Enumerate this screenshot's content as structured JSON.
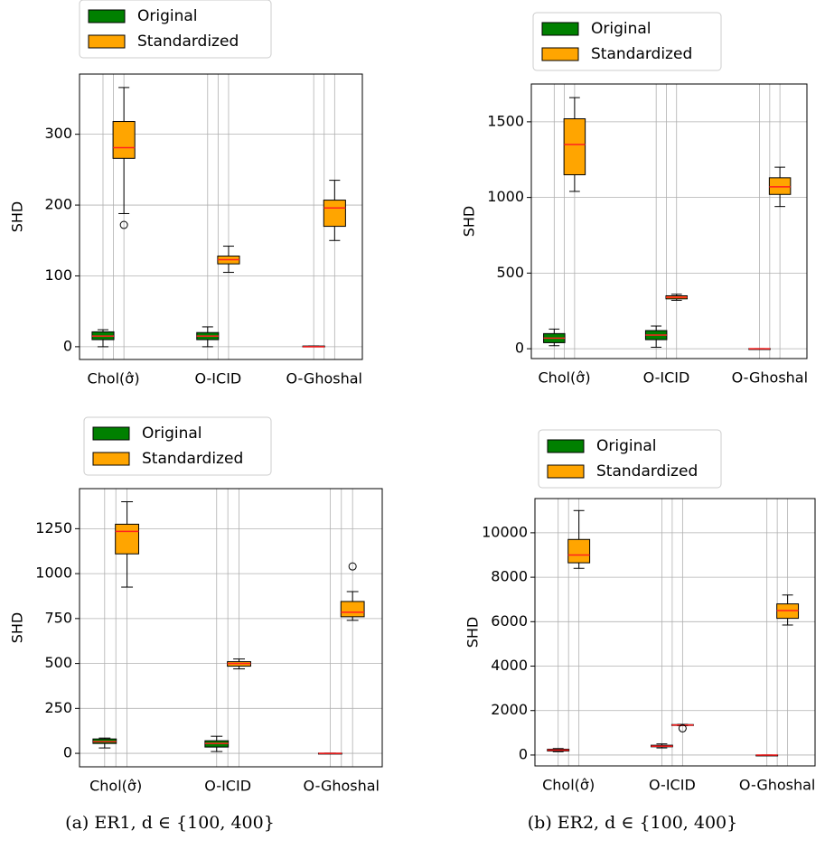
{
  "chart_data": [
    {
      "type": "box",
      "ylabel": "SHD",
      "categories": [
        "Chol(σ̂)",
        "O-ICID",
        "O-Ghoshal"
      ],
      "ylim": [
        -18,
        385
      ],
      "yticks": [
        0,
        100,
        200,
        300
      ],
      "grid": true,
      "legend": "top",
      "series": [
        {
          "name": "Original",
          "color": "#008000",
          "values": [
            {
              "min": 0,
              "q1": 10,
              "median": 15,
              "q3": 21,
              "max": 24,
              "outliers": []
            },
            {
              "min": 0,
              "q1": 10,
              "median": 15,
              "q3": 20,
              "max": 28,
              "outliers": []
            },
            {
              "min": 0,
              "q1": 0,
              "median": 0,
              "q3": 1,
              "max": 1,
              "outliers": []
            }
          ]
        },
        {
          "name": "Standardized",
          "color": "#ffa500",
          "values": [
            {
              "min": 188,
              "q1": 266,
              "median": 281,
              "q3": 318,
              "max": 366,
              "outliers": [
                172
              ]
            },
            {
              "min": 105,
              "q1": 117,
              "median": 123,
              "q3": 128,
              "max": 142,
              "outliers": []
            },
            {
              "min": 150,
              "q1": 170,
              "median": 196,
              "q3": 207,
              "max": 235,
              "outliers": []
            }
          ]
        }
      ]
    },
    {
      "type": "box",
      "ylabel": "SHD",
      "categories": [
        "Chol(σ̂)",
        "O-ICID",
        "O-Ghoshal"
      ],
      "ylim": [
        -65,
        1750
      ],
      "yticks": [
        0,
        500,
        1000,
        1500
      ],
      "grid": true,
      "legend": "top",
      "series": [
        {
          "name": "Original",
          "color": "#008000",
          "values": [
            {
              "min": 20,
              "q1": 40,
              "median": 70,
              "q3": 100,
              "max": 130,
              "outliers": []
            },
            {
              "min": 10,
              "q1": 60,
              "median": 90,
              "q3": 120,
              "max": 150,
              "outliers": []
            },
            {
              "min": 0,
              "q1": 0,
              "median": 0,
              "q3": 1,
              "max": 1,
              "outliers": []
            }
          ]
        },
        {
          "name": "Standardized",
          "color": "#ffa500",
          "values": [
            {
              "min": 1040,
              "q1": 1150,
              "median": 1350,
              "q3": 1520,
              "max": 1660,
              "outliers": []
            },
            {
              "min": 320,
              "q1": 330,
              "median": 340,
              "q3": 350,
              "max": 360,
              "outliers": []
            },
            {
              "min": 940,
              "q1": 1020,
              "median": 1070,
              "q3": 1130,
              "max": 1200,
              "outliers": []
            }
          ]
        }
      ]
    },
    {
      "type": "box",
      "ylabel": "SHD",
      "categories": [
        "Chol(σ̂)",
        "O-ICID",
        "O-Ghoshal"
      ],
      "ylim": [
        -75,
        1473
      ],
      "yticks": [
        0,
        250,
        500,
        750,
        1000,
        1250
      ],
      "grid": true,
      "legend": "top",
      "series": [
        {
          "name": "Original",
          "color": "#008000",
          "values": [
            {
              "min": 30,
              "q1": 55,
              "median": 65,
              "q3": 80,
              "max": 85,
              "outliers": []
            },
            {
              "min": 10,
              "q1": 35,
              "median": 55,
              "q3": 70,
              "max": 95,
              "outliers": []
            },
            {
              "min": 0,
              "q1": 0,
              "median": 0,
              "q3": 1,
              "max": 1,
              "outliers": []
            }
          ]
        },
        {
          "name": "Standardized",
          "color": "#ffa500",
          "values": [
            {
              "min": 925,
              "q1": 1110,
              "median": 1235,
              "q3": 1275,
              "max": 1400,
              "outliers": []
            },
            {
              "min": 470,
              "q1": 485,
              "median": 500,
              "q3": 510,
              "max": 525,
              "outliers": []
            },
            {
              "min": 740,
              "q1": 760,
              "median": 785,
              "q3": 845,
              "max": 900,
              "outliers": [
                1040
              ]
            }
          ]
        }
      ]
    },
    {
      "type": "box",
      "ylabel": "SHD",
      "categories": [
        "Chol(σ̂)",
        "O-ICID",
        "O-Ghoshal"
      ],
      "ylim": [
        -490,
        11540
      ],
      "yticks": [
        0,
        2000,
        4000,
        6000,
        8000,
        10000
      ],
      "grid": true,
      "legend": "top",
      "series": [
        {
          "name": "Original",
          "color": "#008000",
          "values": [
            {
              "min": 150,
              "q1": 180,
              "median": 220,
              "q3": 260,
              "max": 290,
              "outliers": []
            },
            {
              "min": 320,
              "q1": 370,
              "median": 400,
              "q3": 440,
              "max": 500,
              "outliers": []
            },
            {
              "min": 0,
              "q1": 0,
              "median": 0,
              "q3": 1,
              "max": 1,
              "outliers": []
            }
          ]
        },
        {
          "name": "Standardized",
          "color": "#ffa500",
          "values": [
            {
              "min": 8400,
              "q1": 8650,
              "median": 9000,
              "q3": 9700,
              "max": 11000,
              "outliers": []
            },
            {
              "min": 1320,
              "q1": 1340,
              "median": 1350,
              "q3": 1370,
              "max": 1380,
              "outliers": [
                1200
              ]
            },
            {
              "min": 5850,
              "q1": 6150,
              "median": 6500,
              "q3": 6800,
              "max": 7200,
              "outliers": []
            }
          ]
        }
      ]
    }
  ],
  "captions": [
    "(a) ER1, d ∈ {100, 400}",
    "(b) ER2, d ∈ {100, 400}"
  ]
}
